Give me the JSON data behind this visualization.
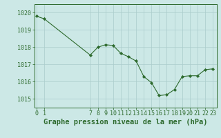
{
  "x": [
    0,
    1,
    7,
    8,
    9,
    10,
    11,
    12,
    13,
    14,
    15,
    16,
    17,
    18,
    19,
    20,
    21,
    22,
    23
  ],
  "y": [
    1019.8,
    1019.65,
    1017.55,
    1018.0,
    1018.15,
    1018.1,
    1017.65,
    1017.45,
    1017.2,
    1016.3,
    1015.95,
    1015.2,
    1015.25,
    1015.55,
    1016.3,
    1016.35,
    1016.35,
    1016.7,
    1016.75
  ],
  "xlabel": "Graphe pression niveau de la mer (hPa)",
  "xticks": [
    0,
    1,
    7,
    8,
    9,
    10,
    11,
    12,
    13,
    14,
    15,
    16,
    17,
    18,
    19,
    20,
    21,
    22,
    23
  ],
  "yticks": [
    1015,
    1016,
    1017,
    1018,
    1019,
    1020
  ],
  "ylim": [
    1014.5,
    1020.5
  ],
  "xlim": [
    -0.3,
    23.5
  ],
  "line_color": "#2d6a2d",
  "marker": "D",
  "marker_size": 2.2,
  "bg_color": "#cce8e6",
  "grid_color": "#aacccc",
  "xlabel_fontsize": 7.5,
  "tick_fontsize": 6.0,
  "xlabel_bold": true
}
